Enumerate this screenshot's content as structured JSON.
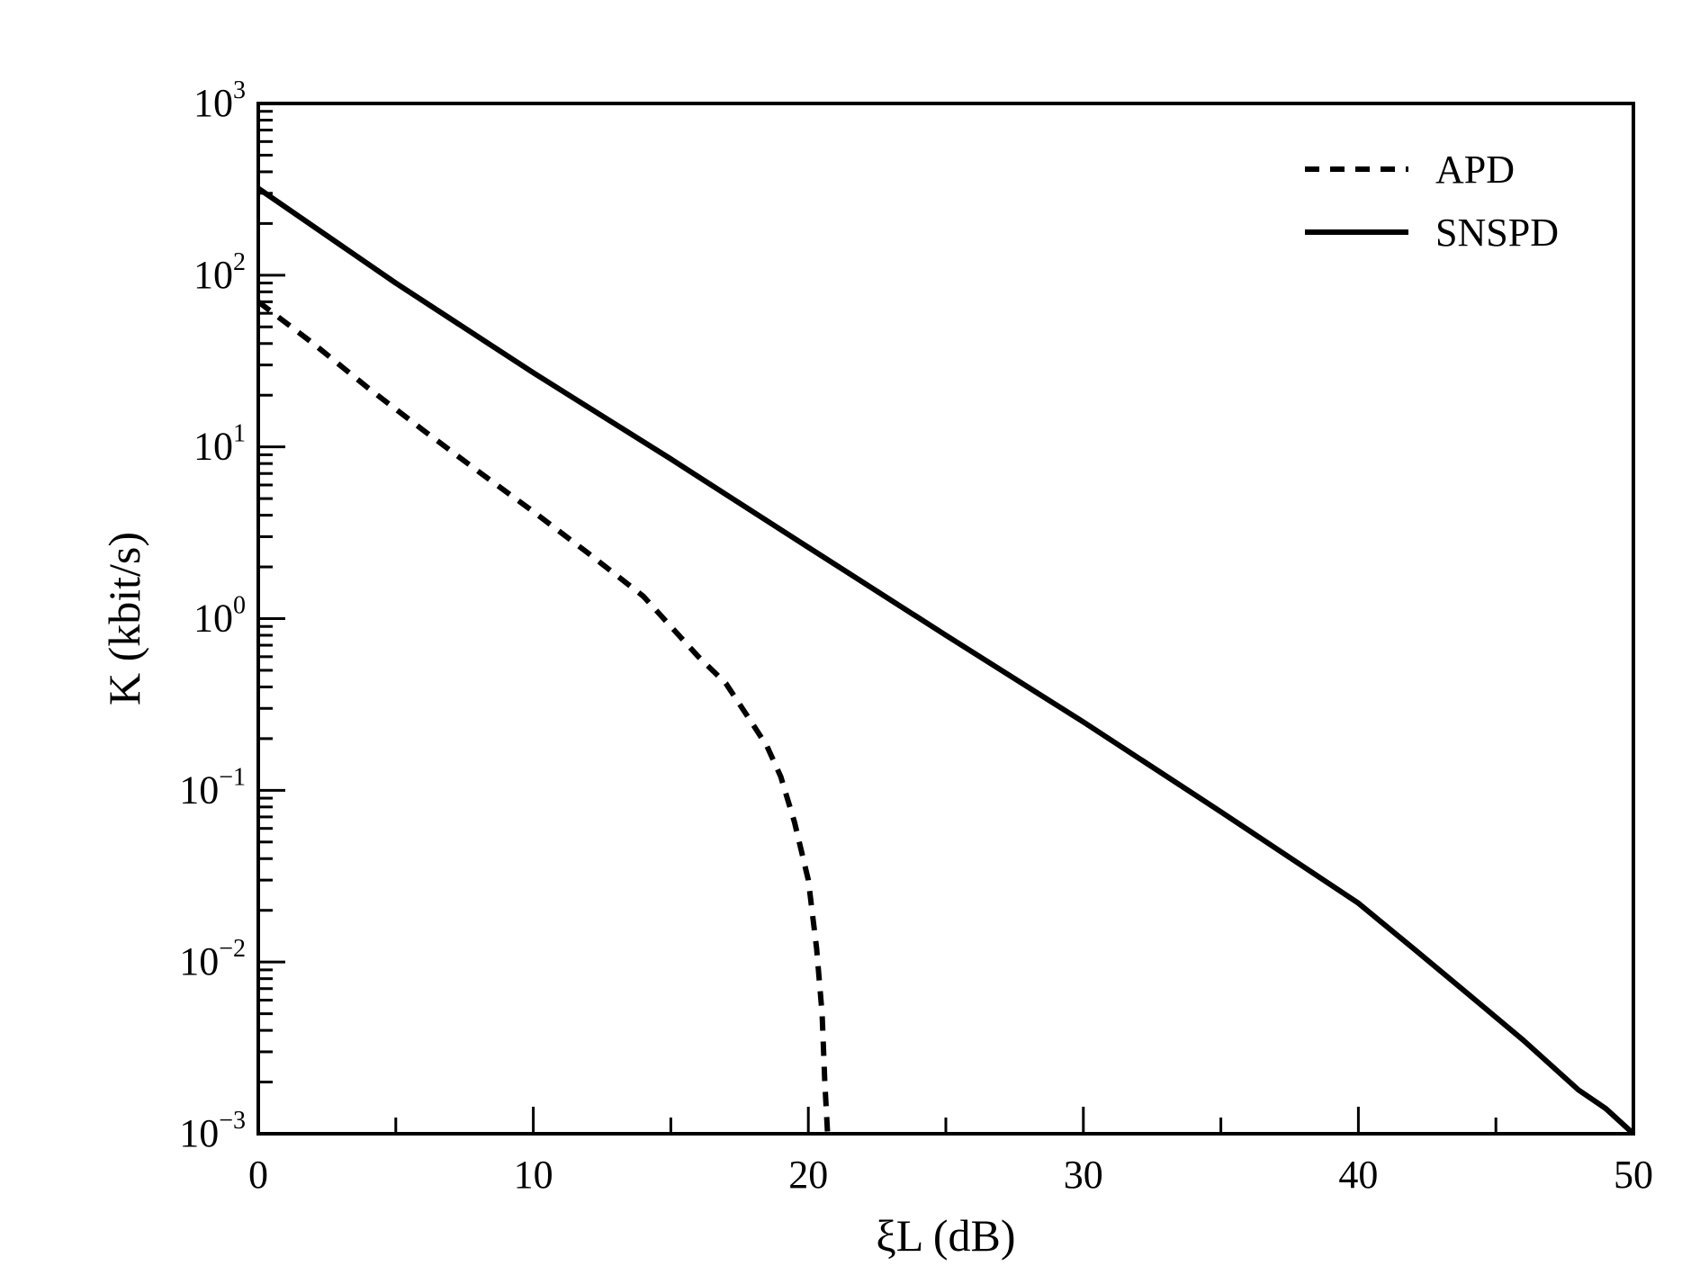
{
  "chart_data": {
    "type": "line",
    "title": "",
    "xlabel": "ξL (dB)",
    "ylabel": "K (kbit/s)",
    "xlim": [
      0,
      50
    ],
    "ylim": [
      0.001,
      1000
    ],
    "yscale": "log",
    "grid": false,
    "legend_position": "top-right",
    "x_ticks": [
      "0",
      "10",
      "20",
      "30",
      "40",
      "50"
    ],
    "y_ticks": [
      {
        "base": "10",
        "exp": "−3"
      },
      {
        "base": "10",
        "exp": "−2"
      },
      {
        "base": "10",
        "exp": "−1"
      },
      {
        "base": "10",
        "exp": "0"
      },
      {
        "base": "10",
        "exp": "1"
      },
      {
        "base": "10",
        "exp": "2"
      },
      {
        "base": "10",
        "exp": "3"
      }
    ],
    "series": [
      {
        "name": "APD",
        "style": "dashed",
        "color": "#000000",
        "x": [
          0,
          2,
          4,
          6,
          8,
          10,
          12,
          14,
          16,
          17,
          18,
          18.5,
          19,
          19.5,
          20,
          20.3,
          20.5,
          20.6,
          20.7
        ],
        "y": [
          70,
          40,
          22,
          12.5,
          7.2,
          4.2,
          2.4,
          1.35,
          0.6,
          0.42,
          0.24,
          0.18,
          0.12,
          0.065,
          0.03,
          0.012,
          0.005,
          0.002,
          0.001
        ]
      },
      {
        "name": "SNSPD",
        "style": "solid",
        "color": "#000000",
        "x": [
          0,
          5,
          10,
          15,
          20,
          25,
          30,
          35,
          40,
          42,
          44,
          46,
          48,
          49,
          50
        ],
        "y": [
          320,
          90,
          27,
          8.5,
          2.6,
          0.8,
          0.25,
          0.075,
          0.022,
          0.012,
          0.0065,
          0.0035,
          0.0018,
          0.0014,
          0.001
        ]
      }
    ]
  }
}
